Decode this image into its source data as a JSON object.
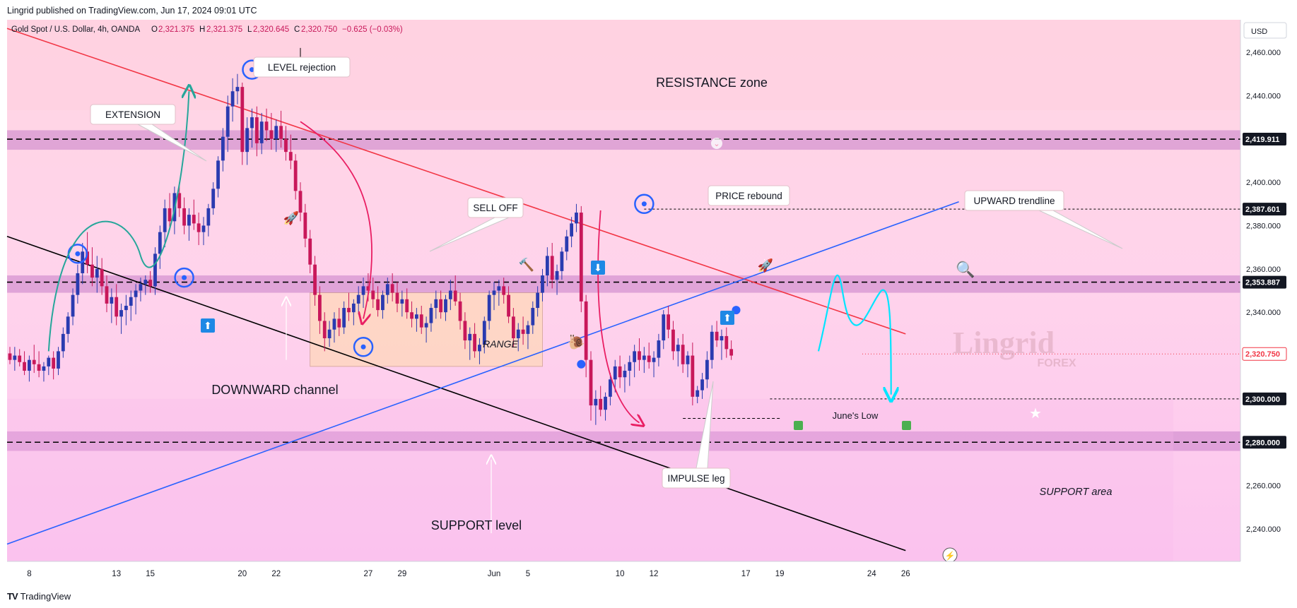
{
  "header": {
    "published": "Lingrid published on TradingView.com, Jun 17, 2024 09:01 UTC",
    "symbol_line": "Gold Spot / U.S. Dollar, 4h, OANDA",
    "ohlc": {
      "o_label": "O",
      "o": "2,321.375",
      "h_label": "H",
      "h": "2,321.375",
      "l_label": "L",
      "l": "2,320.645",
      "c_label": "C",
      "c": "2,320.750",
      "change": "−0.625 (−0.03%)"
    },
    "currency": "USD"
  },
  "footer": {
    "brand": "TradingView"
  },
  "colors": {
    "bull": "#2a3bb0",
    "bear": "#c8185a",
    "resistance_line": "#f23645",
    "trend_blue": "#2962ff",
    "channel_black": "#000000",
    "zone_fill": "#c77dc9",
    "range_fill": "#ffd9b3",
    "price_tag_red": "#f23645",
    "curve_green": "#26a69a",
    "curve_pink": "#e91e63",
    "projection_cyan": "#00e5ff"
  },
  "chart_data": {
    "type": "candlestick",
    "symbol": "Gold Spot / U.S. Dollar",
    "interval": "4h",
    "exchange": "OANDA",
    "ylim": [
      2225,
      2475
    ],
    "y_ticks": [
      "2,240.000",
      "2,260.000",
      "2,300.000",
      "2,340.000",
      "2,360.000",
      "2,380.000",
      "2,400.000",
      "2,440.000",
      "2,460.000"
    ],
    "y_tick_values": [
      2240,
      2260,
      2300,
      2340,
      2360,
      2380,
      2400,
      2440,
      2460
    ],
    "x_ticks": [
      "8",
      "13",
      "15",
      "20",
      "22",
      "27",
      "29",
      "Jun",
      "5",
      "10",
      "12",
      "17",
      "19",
      "24",
      "26"
    ],
    "x_tick_bars": [
      4,
      22,
      29,
      48,
      55,
      74,
      81,
      100,
      107,
      126,
      133,
      152,
      159,
      178,
      185
    ],
    "x_tick_labels_axis": [
      "8",
      "13",
      "15",
      "20",
      "22",
      "27",
      "29",
      "Jun",
      "5",
      "10",
      "12",
      "17",
      "19",
      "24",
      "26"
    ],
    "price_labels": [
      {
        "value": 2419.911,
        "text": "2,419.911",
        "style": "dark"
      },
      {
        "value": 2387.601,
        "text": "2,387.601",
        "style": "dark"
      },
      {
        "value": 2353.887,
        "text": "2,353.887",
        "style": "dark"
      },
      {
        "value": 2320.75,
        "text": "2,320.750",
        "style": "red"
      },
      {
        "value": 2300.0,
        "text": "2,300.000",
        "style": "dark"
      },
      {
        "value": 2280.0,
        "text": "2,280.000",
        "style": "dark"
      }
    ],
    "horizontal_levels": [
      2419.911,
      2387.601,
      2353.887,
      2300.0,
      2280.0
    ],
    "zones": [
      {
        "name": "resistance-band",
        "from": 2415,
        "to": 2424
      },
      {
        "name": "mid-band",
        "from": 2349,
        "to": 2357
      },
      {
        "name": "support-band",
        "from": 2276,
        "to": 2285
      }
    ],
    "range_box": {
      "bar_from": 62,
      "bar_to": 110,
      "low": 2315,
      "high": 2349
    },
    "trendlines": [
      {
        "name": "resistance-line",
        "from": [
          0,
          2471
        ],
        "to": [
          185,
          2330
        ]
      },
      {
        "name": "downward-channel",
        "from": [
          0,
          2375
        ],
        "to": [
          185,
          2230
        ]
      },
      {
        "name": "upward-trendline",
        "from": [
          0,
          2233
        ],
        "to": [
          196,
          2391
        ]
      }
    ],
    "candles": [
      [
        2321,
        2324,
        2316,
        2318
      ],
      [
        2318,
        2324,
        2313,
        2320
      ],
      [
        2320,
        2323,
        2315,
        2317
      ],
      [
        2317,
        2322,
        2311,
        2313
      ],
      [
        2313,
        2320,
        2308,
        2318
      ],
      [
        2318,
        2325,
        2312,
        2316
      ],
      [
        2316,
        2322,
        2310,
        2313
      ],
      [
        2313,
        2317,
        2308,
        2315
      ],
      [
        2315,
        2320,
        2311,
        2319
      ],
      [
        2319,
        2322,
        2309,
        2314
      ],
      [
        2314,
        2324,
        2311,
        2322
      ],
      [
        2322,
        2333,
        2319,
        2330
      ],
      [
        2330,
        2340,
        2326,
        2338
      ],
      [
        2338,
        2351,
        2334,
        2348
      ],
      [
        2348,
        2362,
        2344,
        2358
      ],
      [
        2358,
        2372,
        2353,
        2368
      ],
      [
        2368,
        2377,
        2358,
        2362
      ],
      [
        2362,
        2370,
        2352,
        2356
      ],
      [
        2356,
        2366,
        2349,
        2360
      ],
      [
        2360,
        2365,
        2348,
        2352
      ],
      [
        2352,
        2357,
        2340,
        2344
      ],
      [
        2344,
        2351,
        2335,
        2347
      ],
      [
        2347,
        2353,
        2334,
        2338
      ],
      [
        2338,
        2344,
        2330,
        2341
      ],
      [
        2341,
        2348,
        2334,
        2343
      ],
      [
        2343,
        2350,
        2336,
        2347
      ],
      [
        2347,
        2353,
        2339,
        2350
      ],
      [
        2350,
        2356,
        2345,
        2353
      ],
      [
        2353,
        2357,
        2348,
        2355
      ],
      [
        2355,
        2359,
        2349,
        2352
      ],
      [
        2352,
        2370,
        2348,
        2367
      ],
      [
        2367,
        2380,
        2360,
        2377
      ],
      [
        2377,
        2392,
        2370,
        2388
      ],
      [
        2388,
        2395,
        2378,
        2382
      ],
      [
        2382,
        2398,
        2376,
        2395
      ],
      [
        2395,
        2400,
        2384,
        2388
      ],
      [
        2388,
        2393,
        2376,
        2380
      ],
      [
        2380,
        2388,
        2373,
        2385
      ],
      [
        2385,
        2392,
        2378,
        2381
      ],
      [
        2381,
        2386,
        2371,
        2377
      ],
      [
        2377,
        2384,
        2371,
        2380
      ],
      [
        2380,
        2390,
        2375,
        2388
      ],
      [
        2388,
        2400,
        2385,
        2397
      ],
      [
        2397,
        2412,
        2393,
        2410
      ],
      [
        2410,
        2425,
        2405,
        2421
      ],
      [
        2421,
        2440,
        2414,
        2435
      ],
      [
        2435,
        2448,
        2428,
        2442
      ],
      [
        2442,
        2450,
        2436,
        2444
      ],
      [
        2444,
        2446,
        2408,
        2414
      ],
      [
        2414,
        2430,
        2408,
        2425
      ],
      [
        2425,
        2434,
        2416,
        2430
      ],
      [
        2430,
        2435,
        2412,
        2418
      ],
      [
        2418,
        2432,
        2413,
        2428
      ],
      [
        2428,
        2434,
        2419,
        2424
      ],
      [
        2424,
        2432,
        2415,
        2420
      ],
      [
        2420,
        2429,
        2414,
        2426
      ],
      [
        2426,
        2433,
        2416,
        2420
      ],
      [
        2420,
        2426,
        2410,
        2414
      ],
      [
        2414,
        2422,
        2406,
        2410
      ],
      [
        2410,
        2413,
        2392,
        2396
      ],
      [
        2396,
        2400,
        2382,
        2386
      ],
      [
        2386,
        2390,
        2370,
        2374
      ],
      [
        2374,
        2378,
        2358,
        2362
      ],
      [
        2362,
        2366,
        2343,
        2348
      ],
      [
        2348,
        2352,
        2330,
        2336
      ],
      [
        2336,
        2340,
        2322,
        2328
      ],
      [
        2328,
        2336,
        2324,
        2332
      ],
      [
        2332,
        2340,
        2326,
        2337
      ],
      [
        2337,
        2342,
        2329,
        2333
      ],
      [
        2333,
        2345,
        2330,
        2342
      ],
      [
        2342,
        2349,
        2336,
        2340
      ],
      [
        2340,
        2346,
        2334,
        2344
      ],
      [
        2344,
        2352,
        2339,
        2348
      ],
      [
        2348,
        2356,
        2342,
        2352
      ],
      [
        2352,
        2358,
        2345,
        2350
      ],
      [
        2350,
        2356,
        2342,
        2346
      ],
      [
        2346,
        2352,
        2338,
        2341
      ],
      [
        2341,
        2350,
        2337,
        2348
      ],
      [
        2348,
        2356,
        2344,
        2353
      ],
      [
        2353,
        2358,
        2345,
        2349
      ],
      [
        2349,
        2354,
        2340,
        2344
      ],
      [
        2344,
        2350,
        2338,
        2346
      ],
      [
        2346,
        2351,
        2337,
        2340
      ],
      [
        2340,
        2345,
        2333,
        2337
      ],
      [
        2337,
        2342,
        2331,
        2339
      ],
      [
        2339,
        2343,
        2330,
        2333
      ],
      [
        2333,
        2338,
        2326,
        2335
      ],
      [
        2335,
        2344,
        2331,
        2342
      ],
      [
        2342,
        2350,
        2337,
        2346
      ],
      [
        2346,
        2350,
        2337,
        2340
      ],
      [
        2340,
        2348,
        2336,
        2346
      ],
      [
        2346,
        2355,
        2341,
        2350
      ],
      [
        2350,
        2357,
        2343,
        2345
      ],
      [
        2345,
        2349,
        2332,
        2336
      ],
      [
        2336,
        2340,
        2323,
        2327
      ],
      [
        2327,
        2333,
        2318,
        2330
      ],
      [
        2330,
        2335,
        2319,
        2322
      ],
      [
        2322,
        2328,
        2316,
        2325
      ],
      [
        2325,
        2338,
        2321,
        2336
      ],
      [
        2336,
        2350,
        2332,
        2348
      ],
      [
        2348,
        2354,
        2341,
        2350
      ],
      [
        2350,
        2355,
        2343,
        2352
      ],
      [
        2352,
        2356,
        2344,
        2348
      ],
      [
        2348,
        2352,
        2335,
        2338
      ],
      [
        2338,
        2342,
        2324,
        2328
      ],
      [
        2328,
        2335,
        2322,
        2332
      ],
      [
        2332,
        2338,
        2325,
        2330
      ],
      [
        2330,
        2336,
        2323,
        2334
      ],
      [
        2334,
        2345,
        2330,
        2342
      ],
      [
        2342,
        2352,
        2338,
        2349
      ],
      [
        2349,
        2360,
        2345,
        2357
      ],
      [
        2357,
        2370,
        2352,
        2366
      ],
      [
        2366,
        2372,
        2351,
        2355
      ],
      [
        2355,
        2362,
        2348,
        2359
      ],
      [
        2359,
        2370,
        2355,
        2368
      ],
      [
        2368,
        2378,
        2364,
        2375
      ],
      [
        2375,
        2384,
        2370,
        2381
      ],
      [
        2381,
        2390,
        2377,
        2386
      ],
      [
        2386,
        2389,
        2340,
        2345
      ],
      [
        2345,
        2348,
        2310,
        2318
      ],
      [
        2318,
        2322,
        2290,
        2297
      ],
      [
        2297,
        2304,
        2288,
        2300
      ],
      [
        2300,
        2306,
        2292,
        2295
      ],
      [
        2295,
        2303,
        2290,
        2301
      ],
      [
        2301,
        2312,
        2297,
        2309
      ],
      [
        2309,
        2318,
        2303,
        2315
      ],
      [
        2315,
        2320,
        2305,
        2310
      ],
      [
        2310,
        2316,
        2303,
        2313
      ],
      [
        2313,
        2320,
        2306,
        2317
      ],
      [
        2317,
        2325,
        2310,
        2322
      ],
      [
        2322,
        2328,
        2313,
        2318
      ],
      [
        2318,
        2324,
        2312,
        2320
      ],
      [
        2320,
        2326,
        2314,
        2317
      ],
      [
        2317,
        2322,
        2310,
        2319
      ],
      [
        2319,
        2330,
        2315,
        2327
      ],
      [
        2327,
        2341,
        2323,
        2339
      ],
      [
        2339,
        2343,
        2328,
        2332
      ],
      [
        2332,
        2336,
        2318,
        2322
      ],
      [
        2322,
        2328,
        2315,
        2325
      ],
      [
        2325,
        2330,
        2312,
        2316
      ],
      [
        2316,
        2322,
        2310,
        2320
      ],
      [
        2320,
        2326,
        2297,
        2301
      ],
      [
        2301,
        2306,
        2298,
        2304
      ],
      [
        2304,
        2312,
        2300,
        2309
      ],
      [
        2309,
        2322,
        2305,
        2318
      ],
      [
        2318,
        2334,
        2314,
        2331
      ],
      [
        2331,
        2336,
        2324,
        2327
      ],
      [
        2327,
        2332,
        2318,
        2329
      ],
      [
        2329,
        2333,
        2319,
        2323
      ],
      [
        2323,
        2327,
        2318,
        2320
      ]
    ]
  },
  "annotations": {
    "level_rejection": "LEVEL rejection",
    "resistance_zone": "RESISTANCE zone",
    "extension": "EXTENSION",
    "sell_off": "SELL OFF",
    "price_rebound": "PRICE rebound",
    "upward_trendline": "UPWARD trendline",
    "range": "RANGE",
    "downward_channel": "DOWNWARD channel",
    "support_level": "SUPPORT level",
    "impulse_leg": "IMPULSE leg",
    "junes_low": "June's Low",
    "support_area": "SUPPORT area",
    "watermark_main": "Lingrid",
    "watermark_sub": "FOREX"
  }
}
